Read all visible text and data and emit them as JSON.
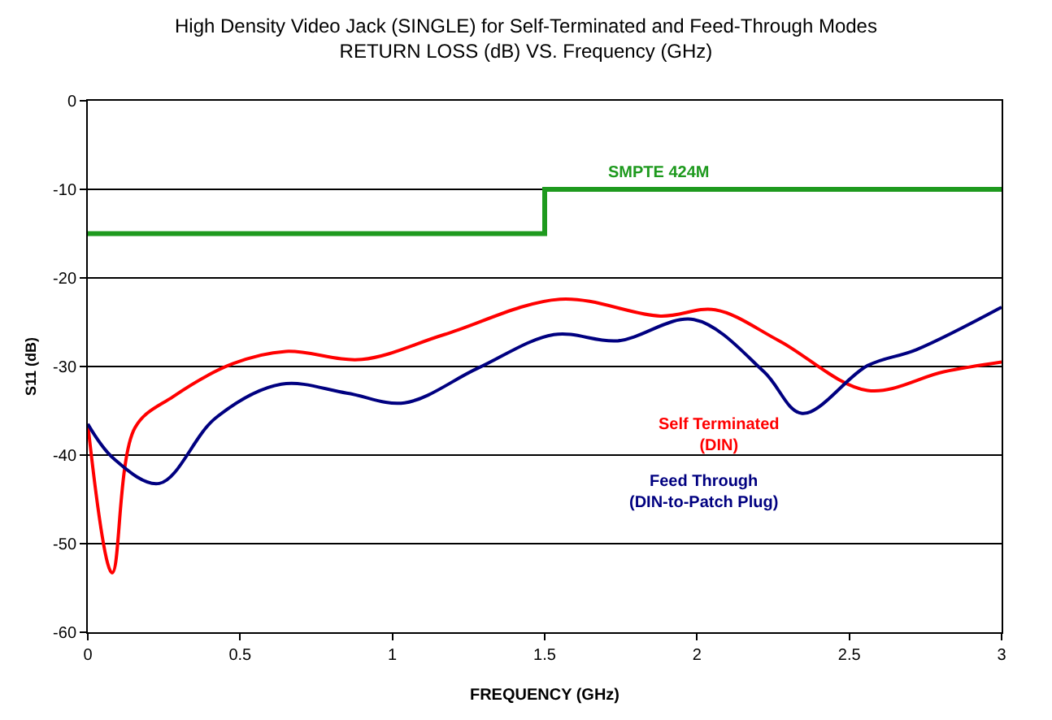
{
  "chart_data": {
    "type": "line",
    "title": "High Density Video Jack (SINGLE) for Self-Terminated and Feed-Through Modes",
    "subtitle": "RETURN LOSS (dB) VS. Frequency (GHz)",
    "xlabel": "FREQUENCY (GHz)",
    "ylabel": "S11 (dB)",
    "xlim": [
      0,
      3
    ],
    "xticks": [
      0,
      0.5,
      1,
      1.5,
      2,
      2.5,
      3
    ],
    "ylim": [
      -60,
      0
    ],
    "yticks": [
      -60,
      -50,
      -40,
      -30,
      -20,
      -10,
      0
    ],
    "grid": "y",
    "legend": false,
    "marker": "none",
    "line_style": "solid",
    "series": [
      {
        "name": "SMPTE 424M",
        "type": "step",
        "color": "#1e9a1e",
        "x": [
          0,
          1.5,
          3
        ],
        "values": [
          -15,
          -10,
          -10
        ]
      },
      {
        "name": "Self Terminated (DIN)",
        "color": "#ff0000",
        "x": [
          0,
          0.08,
          0.155,
          0.28,
          0.475,
          0.65,
          0.9,
          1.17,
          1.55,
          1.88,
          2.06,
          2.27,
          2.56,
          2.81,
          3.0
        ],
        "values": [
          -36.5,
          -53.3,
          -36.9,
          -33.4,
          -29.7,
          -28.3,
          -29.2,
          -26.4,
          -22.4,
          -24.3,
          -23.6,
          -27.1,
          -32.7,
          -30.6,
          -29.5
        ]
      },
      {
        "name": "Feed Through (DIN-to-Patch Plug)",
        "color": "#000080",
        "x": [
          0,
          0.085,
          0.235,
          0.42,
          0.635,
          0.85,
          1.04,
          1.28,
          1.53,
          1.74,
          1.99,
          2.22,
          2.345,
          2.56,
          2.72,
          3.0
        ],
        "values": [
          -36.5,
          -40.4,
          -43.2,
          -35.8,
          -32.0,
          -33.0,
          -34.1,
          -30.2,
          -26.4,
          -27.1,
          -24.7,
          -30.6,
          -35.3,
          -29.9,
          -28.1,
          -23.3
        ]
      }
    ]
  }
}
